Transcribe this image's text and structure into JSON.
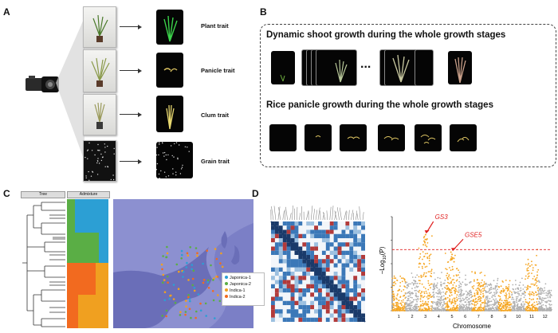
{
  "panels": {
    "a": {
      "letter": "A",
      "traits": [
        "Plant trait",
        "Panicle trait",
        "Clum trait",
        "Grain trait"
      ]
    },
    "b": {
      "letter": "B",
      "title1": "Dynamic shoot growth during the whole growth stages",
      "ellipsis": "...",
      "title2": "Rice panicle growth during the whole growth stages"
    },
    "c": {
      "letter": "C",
      "tree_header": "Tree",
      "admix_header": "Admixture",
      "legend": [
        {
          "label": "Japonica-1",
          "color": "#2c9fd4"
        },
        {
          "label": "Japonica-2",
          "color": "#5aae45"
        },
        {
          "label": "Indica-1",
          "color": "#f0a020"
        },
        {
          "label": "Indica-2",
          "color": "#f26a1f"
        }
      ]
    },
    "d": {
      "letter": "D",
      "gene1": "GS3",
      "gene2": "GSE5",
      "ylabel_prefix": "−Log",
      "ylabel_sub": "10",
      "ylabel_suffix": "(P)",
      "xlabel": "Chromosome"
    }
  },
  "chart_data": {
    "type": "scatter",
    "xlabel": "Chromosome",
    "ylabel": "−Log10(P)",
    "categories": [
      "1",
      "2",
      "3",
      "4",
      "5",
      "6",
      "7",
      "8",
      "9",
      "10",
      "11",
      "12"
    ],
    "ylim": [
      0,
      8
    ],
    "yticks": [
      0,
      2,
      4,
      6,
      8
    ],
    "threshold": 5.2,
    "colors": {
      "odd": "#f5a623",
      "even": "#b0b0b0",
      "threshold": "#e02020",
      "annotation": "#e02020"
    },
    "peaks": [
      {
        "chromosome": 3,
        "value": 6.5,
        "label": "GS3"
      },
      {
        "chromosome": 5,
        "value": 5.0,
        "label": "GSE5"
      }
    ],
    "max_by_chromosome": [
      3.8,
      3.5,
      6.5,
      3.3,
      5.0,
      3.4,
      3.5,
      3.0,
      2.8,
      3.0,
      5.3,
      2.6
    ]
  }
}
